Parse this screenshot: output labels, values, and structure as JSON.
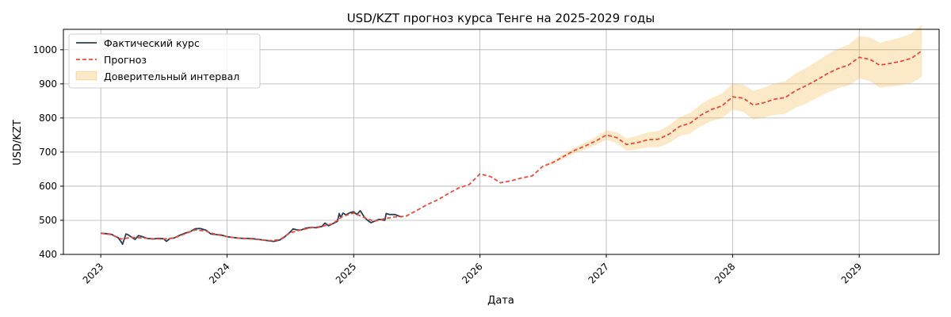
{
  "chart_data": {
    "type": "line",
    "title": "USD/KZT прогноз курса Тенге на 2025-2029 годы",
    "xlabel": "Дата",
    "ylabel": "USD/KZT",
    "x_axis": "date",
    "xlim": [
      "2022-09-15",
      "2029-08-20"
    ],
    "ylim": [
      400,
      1060
    ],
    "x_ticks": [
      "2023",
      "2024",
      "2025",
      "2026",
      "2027",
      "2028",
      "2029"
    ],
    "x_tick_dates": [
      "2023-01-01",
      "2024-01-01",
      "2025-01-01",
      "2026-01-01",
      "2027-01-01",
      "2028-01-01",
      "2029-01-01"
    ],
    "y_ticks": [
      400,
      500,
      600,
      700,
      800,
      900,
      1000
    ],
    "grid": true,
    "legend_position": "top-left",
    "legend": [
      "Фактический курс",
      "Прогноз",
      "Доверительный интервал"
    ],
    "colors": {
      "actual": "#2c3e50",
      "forecast": "#e74c3c",
      "interval_fill": "#f5a623",
      "grid": "#b0b0b0"
    },
    "series": [
      {
        "name": "Фактический курс",
        "style": "solid",
        "points": [
          [
            "2023-01-01",
            462
          ],
          [
            "2023-01-15",
            461
          ],
          [
            "2023-02-01",
            459
          ],
          [
            "2023-02-10",
            454
          ],
          [
            "2023-02-20",
            449
          ],
          [
            "2023-03-01",
            437
          ],
          [
            "2023-03-05",
            430
          ],
          [
            "2023-03-10",
            445
          ],
          [
            "2023-03-15",
            460
          ],
          [
            "2023-03-20",
            458
          ],
          [
            "2023-04-01",
            450
          ],
          [
            "2023-04-10",
            444
          ],
          [
            "2023-04-20",
            455
          ],
          [
            "2023-05-01",
            452
          ],
          [
            "2023-05-15",
            447
          ],
          [
            "2023-06-01",
            445
          ],
          [
            "2023-06-15",
            447
          ],
          [
            "2023-07-01",
            446
          ],
          [
            "2023-07-10",
            438
          ],
          [
            "2023-07-20",
            447
          ],
          [
            "2023-08-01",
            448
          ],
          [
            "2023-08-15",
            455
          ],
          [
            "2023-09-01",
            462
          ],
          [
            "2023-09-15",
            466
          ],
          [
            "2023-10-01",
            475
          ],
          [
            "2023-10-15",
            476
          ],
          [
            "2023-11-01",
            471
          ],
          [
            "2023-11-15",
            460
          ],
          [
            "2023-12-01",
            458
          ],
          [
            "2023-12-15",
            457
          ],
          [
            "2024-01-01",
            452
          ],
          [
            "2024-01-15",
            450
          ],
          [
            "2024-02-01",
            448
          ],
          [
            "2024-02-15",
            447
          ],
          [
            "2024-03-01",
            447
          ],
          [
            "2024-03-15",
            446
          ],
          [
            "2024-04-01",
            444
          ],
          [
            "2024-04-15",
            442
          ],
          [
            "2024-05-01",
            440
          ],
          [
            "2024-05-15",
            438
          ],
          [
            "2024-06-01",
            442
          ],
          [
            "2024-06-15",
            451
          ],
          [
            "2024-07-01",
            465
          ],
          [
            "2024-07-10",
            475
          ],
          [
            "2024-07-20",
            472
          ],
          [
            "2024-08-01",
            471
          ],
          [
            "2024-08-15",
            477
          ],
          [
            "2024-09-01",
            479
          ],
          [
            "2024-09-15",
            478
          ],
          [
            "2024-10-01",
            482
          ],
          [
            "2024-10-10",
            492
          ],
          [
            "2024-10-20",
            484
          ],
          [
            "2024-11-01",
            490
          ],
          [
            "2024-11-15",
            497
          ],
          [
            "2024-11-20",
            520
          ],
          [
            "2024-11-25",
            508
          ],
          [
            "2024-12-01",
            521
          ],
          [
            "2024-12-10",
            516
          ],
          [
            "2024-12-20",
            522
          ],
          [
            "2025-01-01",
            525
          ],
          [
            "2025-01-10",
            517
          ],
          [
            "2025-01-20",
            528
          ],
          [
            "2025-02-01",
            509
          ],
          [
            "2025-02-10",
            500
          ],
          [
            "2025-02-20",
            493
          ],
          [
            "2025-03-01",
            497
          ],
          [
            "2025-03-15",
            503
          ],
          [
            "2025-04-01",
            500
          ],
          [
            "2025-04-05",
            520
          ],
          [
            "2025-04-15",
            517
          ],
          [
            "2025-05-01",
            517
          ],
          [
            "2025-05-10",
            513
          ],
          [
            "2025-05-20",
            510
          ]
        ]
      },
      {
        "name": "Прогноз",
        "style": "dashed",
        "points": [
          [
            "2023-01-01",
            462
          ],
          [
            "2023-02-01",
            458
          ],
          [
            "2023-03-01",
            445
          ],
          [
            "2023-04-01",
            450
          ],
          [
            "2023-05-01",
            448
          ],
          [
            "2023-06-01",
            446
          ],
          [
            "2023-07-01",
            445
          ],
          [
            "2023-08-01",
            448
          ],
          [
            "2023-09-01",
            460
          ],
          [
            "2023-10-01",
            472
          ],
          [
            "2023-11-01",
            468
          ],
          [
            "2023-12-01",
            458
          ],
          [
            "2024-01-01",
            452
          ],
          [
            "2024-02-01",
            448
          ],
          [
            "2024-03-01",
            446
          ],
          [
            "2024-04-01",
            444
          ],
          [
            "2024-05-01",
            440
          ],
          [
            "2024-06-01",
            443
          ],
          [
            "2024-07-01",
            463
          ],
          [
            "2024-08-01",
            472
          ],
          [
            "2024-09-01",
            478
          ],
          [
            "2024-10-01",
            482
          ],
          [
            "2024-11-01",
            490
          ],
          [
            "2024-12-01",
            512
          ],
          [
            "2025-01-01",
            521
          ],
          [
            "2025-02-01",
            508
          ],
          [
            "2025-03-01",
            497
          ],
          [
            "2025-04-01",
            505
          ],
          [
            "2025-05-01",
            510
          ],
          [
            "2025-06-01",
            512
          ],
          [
            "2025-07-01",
            528
          ],
          [
            "2025-08-01",
            546
          ],
          [
            "2025-09-01",
            560
          ],
          [
            "2025-10-01",
            578
          ],
          [
            "2025-11-01",
            595
          ],
          [
            "2025-12-01",
            605
          ],
          [
            "2026-01-01",
            636
          ],
          [
            "2026-02-01",
            628
          ],
          [
            "2026-03-01",
            610
          ],
          [
            "2026-04-01",
            616
          ],
          [
            "2026-05-01",
            624
          ],
          [
            "2026-06-01",
            630
          ],
          [
            "2026-07-01",
            658
          ],
          [
            "2026-08-01",
            670
          ],
          [
            "2026-09-01",
            688
          ],
          [
            "2026-10-01",
            705
          ],
          [
            "2026-11-01",
            718
          ],
          [
            "2026-12-01",
            732
          ],
          [
            "2027-01-01",
            750
          ],
          [
            "2027-02-01",
            742
          ],
          [
            "2027-03-01",
            722
          ],
          [
            "2027-04-01",
            728
          ],
          [
            "2027-05-01",
            736
          ],
          [
            "2027-06-01",
            738
          ],
          [
            "2027-07-01",
            752
          ],
          [
            "2027-08-01",
            775
          ],
          [
            "2027-09-01",
            785
          ],
          [
            "2027-10-01",
            808
          ],
          [
            "2027-11-01",
            825
          ],
          [
            "2027-12-01",
            835
          ],
          [
            "2028-01-01",
            862
          ],
          [
            "2028-02-01",
            858
          ],
          [
            "2028-03-01",
            838
          ],
          [
            "2028-04-01",
            845
          ],
          [
            "2028-05-01",
            855
          ],
          [
            "2028-06-01",
            860
          ],
          [
            "2028-07-01",
            880
          ],
          [
            "2028-08-01",
            895
          ],
          [
            "2028-09-01",
            912
          ],
          [
            "2028-10-01",
            930
          ],
          [
            "2028-11-01",
            945
          ],
          [
            "2028-12-01",
            955
          ],
          [
            "2029-01-01",
            978
          ],
          [
            "2029-02-01",
            972
          ],
          [
            "2029-03-01",
            955
          ],
          [
            "2029-04-01",
            960
          ],
          [
            "2029-05-01",
            966
          ],
          [
            "2029-06-01",
            975
          ],
          [
            "2029-07-01",
            997
          ]
        ]
      }
    ],
    "confidence_interval": {
      "name": "Доверительный интервал",
      "points": [
        [
          "2026-07-01",
          658,
          658
        ],
        [
          "2026-08-01",
          665,
          675
        ],
        [
          "2026-09-01",
          681,
          695
        ],
        [
          "2026-10-01",
          697,
          713
        ],
        [
          "2026-11-01",
          708,
          728
        ],
        [
          "2026-12-01",
          720,
          744
        ],
        [
          "2027-01-01",
          736,
          764
        ],
        [
          "2027-02-01",
          726,
          758
        ],
        [
          "2027-03-01",
          704,
          740
        ],
        [
          "2027-04-01",
          708,
          748
        ],
        [
          "2027-05-01",
          714,
          758
        ],
        [
          "2027-06-01",
          714,
          762
        ],
        [
          "2027-07-01",
          726,
          778
        ],
        [
          "2027-08-01",
          747,
          803
        ],
        [
          "2027-09-01",
          755,
          815
        ],
        [
          "2027-10-01",
          776,
          840
        ],
        [
          "2027-11-01",
          791,
          859
        ],
        [
          "2027-12-01",
          799,
          871
        ],
        [
          "2028-01-01",
          824,
          900
        ],
        [
          "2028-02-01",
          818,
          898
        ],
        [
          "2028-03-01",
          796,
          880
        ],
        [
          "2028-04-01",
          801,
          889
        ],
        [
          "2028-05-01",
          809,
          901
        ],
        [
          "2028-06-01",
          812,
          908
        ],
        [
          "2028-07-01",
          830,
          930
        ],
        [
          "2028-08-01",
          843,
          947
        ],
        [
          "2028-09-01",
          858,
          966
        ],
        [
          "2028-10-01",
          874,
          986
        ],
        [
          "2028-11-01",
          887,
          1003
        ],
        [
          "2028-12-01",
          895,
          1015
        ],
        [
          "2029-01-01",
          916,
          1040
        ],
        [
          "2029-02-01",
          908,
          1036
        ],
        [
          "2029-03-01",
          889,
          1021
        ],
        [
          "2029-04-01",
          892,
          1028
        ],
        [
          "2029-05-01",
          896,
          1036
        ],
        [
          "2029-06-01",
          902,
          1048
        ],
        [
          "2029-07-01",
          920,
          1074
        ]
      ]
    }
  }
}
